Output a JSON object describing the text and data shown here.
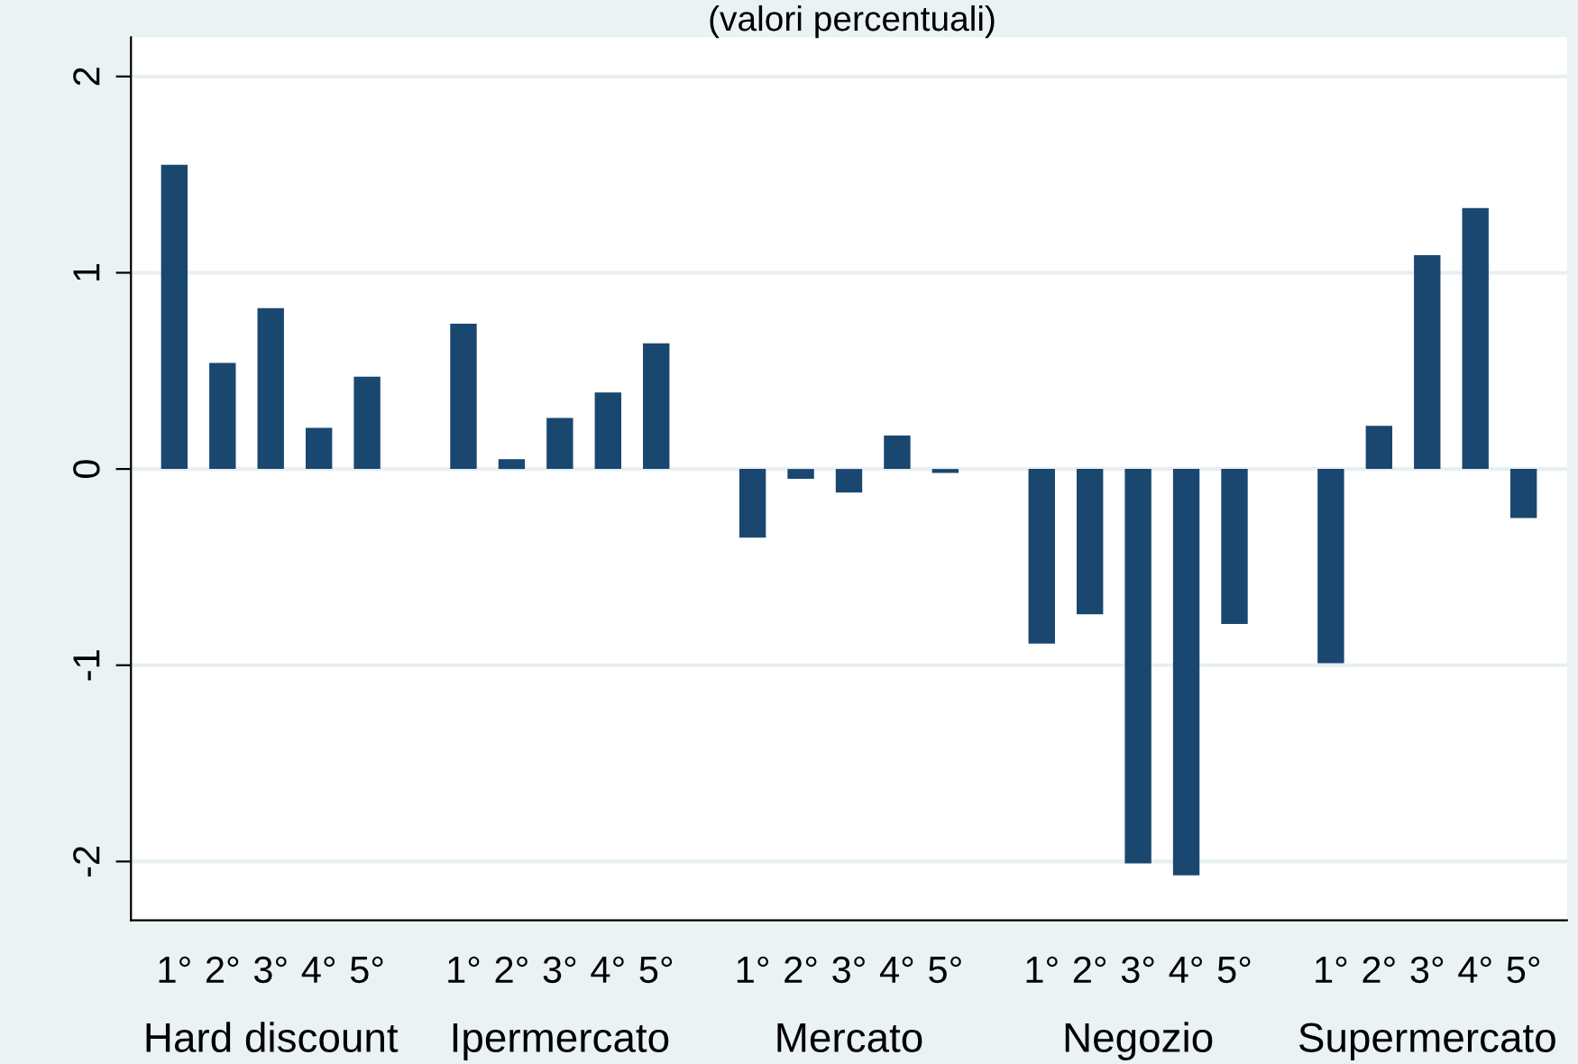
{
  "chart_data": {
    "type": "bar",
    "title": "(valori percentuali)",
    "categories": [
      "1°",
      "2°",
      "3°",
      "4°",
      "5°",
      null,
      "1°",
      "2°",
      "3°",
      "4°",
      "5°",
      null,
      "1°",
      "2°",
      "3°",
      "4°",
      "5°",
      null,
      "1°",
      "2°",
      "3°",
      "4°",
      "5°",
      null,
      "1°",
      "2°",
      "3°",
      "4°",
      "5°"
    ],
    "values": [
      1.55,
      0.54,
      0.82,
      0.21,
      0.47,
      null,
      0.74,
      0.05,
      0.26,
      0.39,
      0.64,
      null,
      -0.35,
      -0.05,
      -0.12,
      0.17,
      -0.02,
      null,
      -0.89,
      -0.74,
      -2.01,
      -2.07,
      -0.79,
      null,
      -0.99,
      0.22,
      1.09,
      1.33,
      -0.25
    ],
    "color": "#1a476f",
    "annotations": [
      "Hard discount",
      "Ipermercato",
      "Mercato",
      "Negozio",
      "Supermercato"
    ],
    "ylim": [
      -2.3,
      2.2
    ],
    "yticks": [
      -2,
      -1,
      0,
      1,
      2
    ],
    "grid": "y"
  }
}
